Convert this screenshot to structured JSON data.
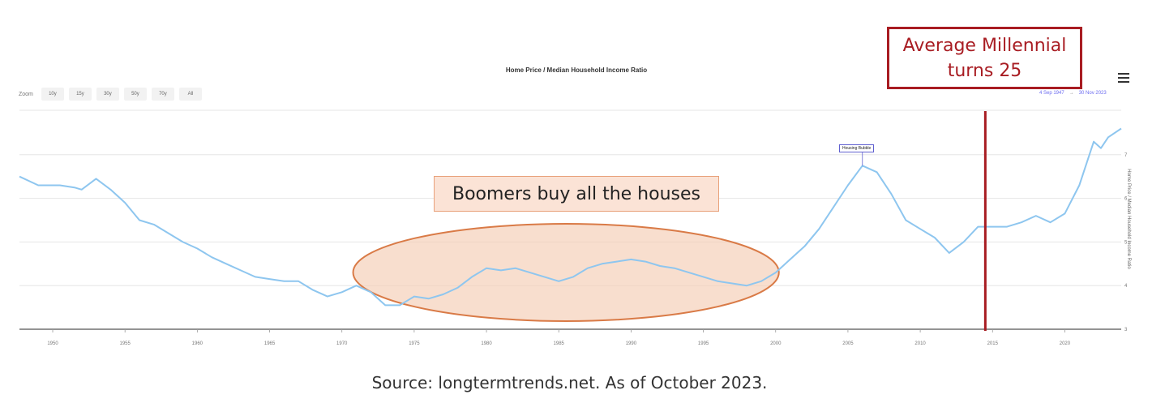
{
  "chart": {
    "title": "Home Price / Median Household Income Ratio",
    "zoom_label": "Zoom",
    "zoom_buttons": [
      "10y",
      "15y",
      "30y",
      "50y",
      "70y",
      "All"
    ],
    "range_from": "4 Sep 1947",
    "range_sep": "→",
    "range_to": "30 Nov 2023",
    "menu_icon": "hamburger-menu-icon"
  },
  "annotations": {
    "boomers": "Boomers buy all the houses",
    "millennial_line1": "Average Millennial",
    "millennial_line2": "turns 25",
    "housing_bubble": "Housing Bubble"
  },
  "source": "Source: longtermtrends.net. As of October 2023.",
  "colors": {
    "line": "#8ec6ef",
    "millennial_red": "#a81c22",
    "boomer_fill": "#f5cdb4",
    "boomer_stroke": "#d97a46"
  },
  "chart_data": {
    "type": "line",
    "title": "Home Price / Median Household Income Ratio",
    "ylabel": "Home Price / Median Household Income Ratio",
    "xlim": [
      1947.7,
      2023.9
    ],
    "ylim": [
      3,
      8
    ],
    "x_ticks": [
      1950,
      1955,
      1960,
      1965,
      1970,
      1975,
      1980,
      1985,
      1990,
      1995,
      2000,
      2005,
      2010,
      2015,
      2020
    ],
    "y_ticks": [
      3,
      4,
      5,
      6,
      7
    ],
    "grid": true,
    "series": [
      {
        "name": "Home Price / Median Household Income Ratio",
        "points": [
          [
            1947.7,
            6.5
          ],
          [
            1949.0,
            6.3
          ],
          [
            1950.5,
            6.3
          ],
          [
            1951.5,
            6.25
          ],
          [
            1952.0,
            6.2
          ],
          [
            1953.0,
            6.45
          ],
          [
            1954.0,
            6.2
          ],
          [
            1955.0,
            5.9
          ],
          [
            1956.0,
            5.5
          ],
          [
            1957.0,
            5.4
          ],
          [
            1958.0,
            5.2
          ],
          [
            1959.0,
            5.0
          ],
          [
            1960.0,
            4.85
          ],
          [
            1961.0,
            4.65
          ],
          [
            1962.0,
            4.5
          ],
          [
            1963.0,
            4.35
          ],
          [
            1964.0,
            4.2
          ],
          [
            1965.0,
            4.15
          ],
          [
            1966.0,
            4.1
          ],
          [
            1967.0,
            4.1
          ],
          [
            1968.0,
            3.9
          ],
          [
            1969.0,
            3.75
          ],
          [
            1970.0,
            3.85
          ],
          [
            1971.0,
            4.0
          ],
          [
            1972.0,
            3.85
          ],
          [
            1973.0,
            3.55
          ],
          [
            1974.0,
            3.55
          ],
          [
            1975.0,
            3.75
          ],
          [
            1976.0,
            3.7
          ],
          [
            1977.0,
            3.8
          ],
          [
            1978.0,
            3.95
          ],
          [
            1979.0,
            4.2
          ],
          [
            1980.0,
            4.4
          ],
          [
            1981.0,
            4.35
          ],
          [
            1982.0,
            4.4
          ],
          [
            1983.0,
            4.3
          ],
          [
            1984.0,
            4.2
          ],
          [
            1985.0,
            4.1
          ],
          [
            1986.0,
            4.2
          ],
          [
            1987.0,
            4.4
          ],
          [
            1988.0,
            4.5
          ],
          [
            1989.0,
            4.55
          ],
          [
            1990.0,
            4.6
          ],
          [
            1991.0,
            4.55
          ],
          [
            1992.0,
            4.45
          ],
          [
            1993.0,
            4.4
          ],
          [
            1994.0,
            4.3
          ],
          [
            1995.0,
            4.2
          ],
          [
            1996.0,
            4.1
          ],
          [
            1997.0,
            4.05
          ],
          [
            1998.0,
            4.0
          ],
          [
            1999.0,
            4.1
          ],
          [
            2000.0,
            4.3
          ],
          [
            2001.0,
            4.6
          ],
          [
            2002.0,
            4.9
          ],
          [
            2003.0,
            5.3
          ],
          [
            2004.0,
            5.8
          ],
          [
            2005.0,
            6.3
          ],
          [
            2006.0,
            6.75
          ],
          [
            2007.0,
            6.6
          ],
          [
            2008.0,
            6.1
          ],
          [
            2009.0,
            5.5
          ],
          [
            2010.0,
            5.3
          ],
          [
            2011.0,
            5.1
          ],
          [
            2012.0,
            4.75
          ],
          [
            2013.0,
            5.0
          ],
          [
            2014.0,
            5.35
          ],
          [
            2015.0,
            5.35
          ],
          [
            2016.0,
            5.35
          ],
          [
            2017.0,
            5.45
          ],
          [
            2018.0,
            5.6
          ],
          [
            2019.0,
            5.45
          ],
          [
            2020.0,
            5.65
          ],
          [
            2021.0,
            6.3
          ],
          [
            2022.0,
            7.3
          ],
          [
            2022.5,
            7.15
          ],
          [
            2023.0,
            7.4
          ],
          [
            2023.9,
            7.6
          ]
        ]
      }
    ],
    "annotations": [
      {
        "text": "Housing Bubble",
        "x": 2006.0,
        "y": 6.75
      },
      {
        "text": "Boomers buy all the houses",
        "x_range": [
          1971,
          2000
        ]
      },
      {
        "text": "Average Millennial turns 25",
        "x": 2014.5
      }
    ]
  }
}
